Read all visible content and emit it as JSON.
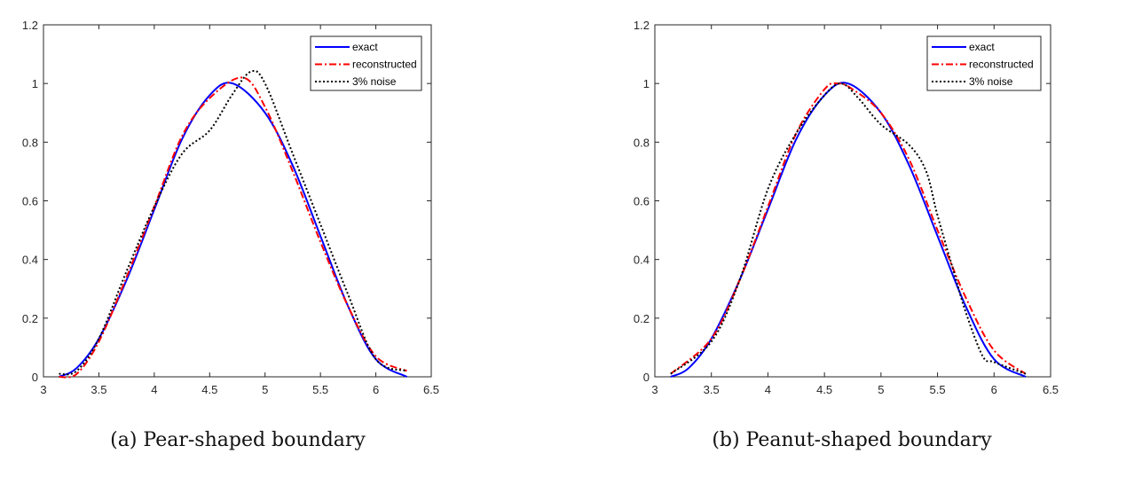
{
  "chart_data": [
    {
      "type": "line",
      "caption": "(a) Pear-shaped boundary",
      "xlim": [
        3,
        6.5
      ],
      "ylim": [
        0,
        1.2
      ],
      "xticks": [
        "3",
        "3.5",
        "4",
        "4.5",
        "5",
        "5.5",
        "6",
        "6.5"
      ],
      "yticks": [
        "0",
        "0.2",
        "0.4",
        "0.6",
        "0.8",
        "1",
        "1.2"
      ],
      "legend_position": "top-right",
      "series": [
        {
          "name": "exact",
          "color": "#0000ff",
          "style": "solid",
          "x": [
            3.14,
            3.3,
            3.5,
            3.75,
            4.0,
            4.25,
            4.5,
            4.71,
            5.0,
            5.25,
            5.5,
            5.75,
            6.0,
            6.28
          ],
          "y": [
            0,
            0.03,
            0.13,
            0.33,
            0.57,
            0.81,
            0.96,
            1.0,
            0.9,
            0.72,
            0.48,
            0.24,
            0.06,
            0
          ]
        },
        {
          "name": "reconstructed",
          "color": "#ff0000",
          "style": "dashdot",
          "x": [
            3.14,
            3.3,
            3.5,
            3.75,
            4.0,
            4.25,
            4.5,
            4.8,
            5.0,
            5.25,
            5.5,
            5.75,
            6.0,
            6.28
          ],
          "y": [
            0,
            0.01,
            0.12,
            0.34,
            0.58,
            0.82,
            0.95,
            1.02,
            0.92,
            0.7,
            0.46,
            0.24,
            0.07,
            0.02
          ]
        },
        {
          "name": "3% noise",
          "color": "#000000",
          "style": "dotted",
          "x": [
            3.14,
            3.3,
            3.5,
            3.75,
            4.0,
            4.25,
            4.5,
            4.7,
            4.87,
            5.0,
            5.25,
            5.5,
            5.75,
            6.0,
            6.28
          ],
          "y": [
            0.01,
            0.02,
            0.13,
            0.36,
            0.58,
            0.76,
            0.84,
            0.96,
            1.04,
            1.0,
            0.76,
            0.52,
            0.28,
            0.06,
            0.02
          ]
        }
      ]
    },
    {
      "type": "line",
      "caption": "(b) Peanut-shaped boundary",
      "xlim": [
        3,
        6.5
      ],
      "ylim": [
        0,
        1.2
      ],
      "xticks": [
        "3",
        "3.5",
        "4",
        "4.5",
        "5",
        "5.5",
        "6",
        "6.5"
      ],
      "yticks": [
        "0",
        "0.2",
        "0.4",
        "0.6",
        "0.8",
        "1",
        "1.2"
      ],
      "legend_position": "top-right",
      "series": [
        {
          "name": "exact",
          "color": "#0000ff",
          "style": "solid",
          "x": [
            3.14,
            3.3,
            3.5,
            3.75,
            4.0,
            4.25,
            4.5,
            4.71,
            5.0,
            5.25,
            5.5,
            5.75,
            6.0,
            6.28
          ],
          "y": [
            0,
            0.03,
            0.13,
            0.33,
            0.57,
            0.81,
            0.96,
            1.0,
            0.9,
            0.72,
            0.48,
            0.24,
            0.06,
            0
          ]
        },
        {
          "name": "reconstructed",
          "color": "#ff0000",
          "style": "dashdot",
          "x": [
            3.14,
            3.5,
            3.75,
            4.0,
            4.25,
            4.5,
            4.62,
            4.75,
            5.0,
            5.25,
            5.5,
            5.75,
            6.0,
            6.28
          ],
          "y": [
            0.01,
            0.13,
            0.33,
            0.58,
            0.83,
            0.98,
            1.0,
            0.98,
            0.9,
            0.74,
            0.5,
            0.27,
            0.09,
            0.01
          ]
        },
        {
          "name": "3% noise",
          "color": "#000000",
          "style": "dotted",
          "x": [
            3.14,
            3.5,
            3.75,
            4.0,
            4.25,
            4.5,
            4.65,
            4.8,
            5.0,
            5.25,
            5.4,
            5.5,
            5.65,
            5.75,
            5.9,
            6.0,
            6.28
          ],
          "y": [
            0.01,
            0.12,
            0.33,
            0.64,
            0.83,
            0.96,
            1.0,
            0.95,
            0.86,
            0.79,
            0.7,
            0.55,
            0.35,
            0.22,
            0.07,
            0.05,
            0.01
          ]
        }
      ]
    }
  ]
}
